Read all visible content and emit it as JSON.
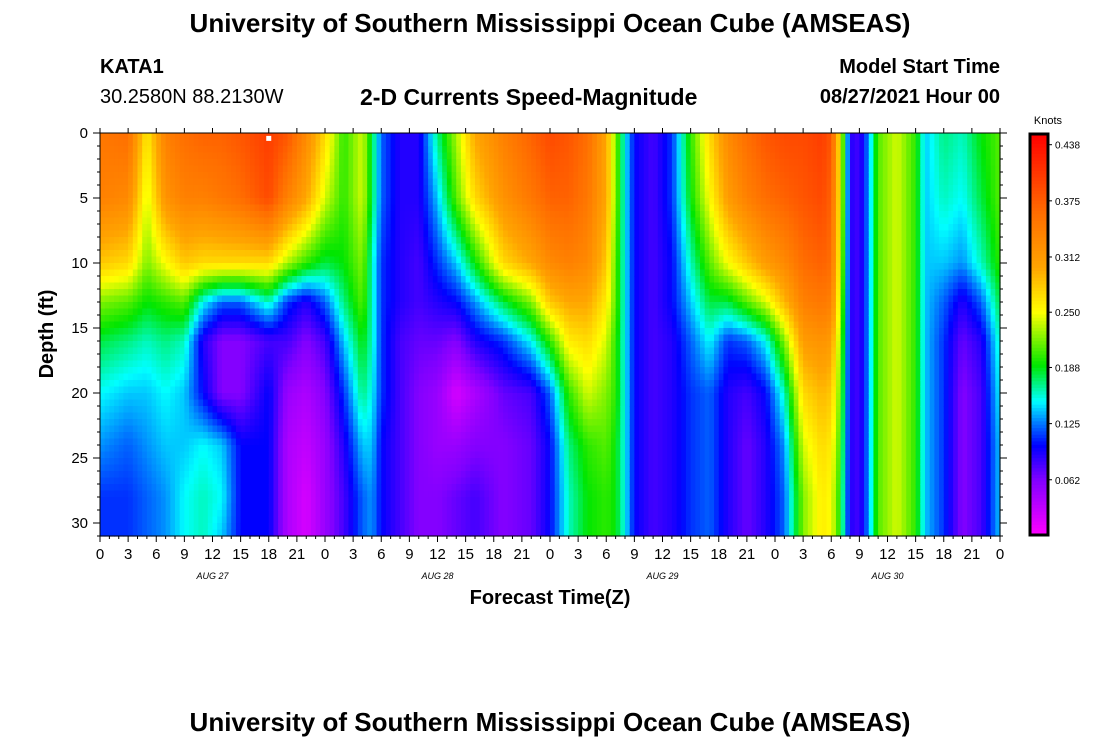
{
  "header": {
    "title": "University of Southern Mississippi Ocean Cube (AMSEAS)",
    "station_id": "KATA1",
    "station_coords": "30.2580N  88.2130W",
    "plot_title": "2-D Currents Speed-Magnitude",
    "model_start_label": "Model Start Time",
    "model_start_value": "08/27/2021 Hour 00"
  },
  "footer": {
    "title": "University of Southern Mississippi Ocean Cube (AMSEAS)"
  },
  "colors": {
    "background": "#ffffff",
    "axis": "#000000",
    "marker": "#ffffff"
  },
  "chart_data": {
    "type": "heatmap",
    "title": "2-D Currents Speed-Magnitude",
    "xlabel": "Forecast Time(Z)",
    "ylabel": "Depth (ft)",
    "x_ticks": [
      "0",
      "3",
      "6",
      "9",
      "12",
      "15",
      "18",
      "21",
      "0",
      "3",
      "6",
      "9",
      "12",
      "15",
      "18",
      "21",
      "0",
      "3",
      "6",
      "9",
      "12",
      "15",
      "18",
      "21",
      "0",
      "3",
      "6",
      "9",
      "12",
      "15",
      "18",
      "21",
      "0"
    ],
    "x_hours": [
      0,
      3,
      6,
      9,
      12,
      15,
      18,
      21,
      24,
      27,
      30,
      33,
      36,
      39,
      42,
      45,
      48,
      51,
      54,
      57,
      60,
      63,
      66,
      69,
      72,
      75,
      78,
      81,
      84,
      87,
      90,
      93,
      96
    ],
    "xlim_hours": [
      0,
      96
    ],
    "day_labels": [
      {
        "label": "AUG 27",
        "hour": 12
      },
      {
        "label": "AUG 28",
        "hour": 36
      },
      {
        "label": "AUG 29",
        "hour": 60
      },
      {
        "label": "AUG 30",
        "hour": 84
      }
    ],
    "y_ticks": [
      0,
      5,
      10,
      15,
      20,
      25,
      30
    ],
    "ylim_ft": [
      0,
      31
    ],
    "colorbar": {
      "unit_label": "Knots",
      "tick_labels": [
        "0.438",
        "0.375",
        "0.312",
        "0.250",
        "0.188",
        "0.125",
        "0.062"
      ],
      "tick_values": [
        0.438,
        0.375,
        0.312,
        0.25,
        0.188,
        0.125,
        0.062
      ],
      "range": [
        0,
        0.45
      ]
    },
    "grid": false,
    "marker": {
      "hour": 18,
      "depth_ft": 0.3
    },
    "profile_depths_ft": [
      0,
      5,
      10,
      13,
      16,
      20,
      24,
      28,
      31
    ],
    "speed_profiles_knots": [
      {
        "hour": 0,
        "values": [
          0.35,
          0.34,
          0.28,
          0.22,
          0.18,
          0.15,
          0.13,
          0.11,
          0.11
        ]
      },
      {
        "hour": 3,
        "values": [
          0.36,
          0.33,
          0.27,
          0.21,
          0.17,
          0.14,
          0.12,
          0.11,
          0.11
        ]
      },
      {
        "hour": 5,
        "values": [
          0.26,
          0.24,
          0.22,
          0.19,
          0.16,
          0.14,
          0.13,
          0.12,
          0.12
        ]
      },
      {
        "hour": 7,
        "values": [
          0.34,
          0.32,
          0.25,
          0.2,
          0.17,
          0.15,
          0.14,
          0.13,
          0.13
        ]
      },
      {
        "hour": 9,
        "values": [
          0.36,
          0.34,
          0.28,
          0.21,
          0.16,
          0.14,
          0.14,
          0.15,
          0.15
        ]
      },
      {
        "hour": 11,
        "values": [
          0.37,
          0.34,
          0.27,
          0.15,
          0.09,
          0.1,
          0.15,
          0.16,
          0.16
        ]
      },
      {
        "hour": 13,
        "values": [
          0.37,
          0.35,
          0.27,
          0.12,
          0.06,
          0.06,
          0.14,
          0.15,
          0.14
        ]
      },
      {
        "hour": 15,
        "values": [
          0.38,
          0.36,
          0.27,
          0.12,
          0.06,
          0.06,
          0.1,
          0.1,
          0.1
        ]
      },
      {
        "hour": 18,
        "values": [
          0.4,
          0.39,
          0.27,
          0.16,
          0.08,
          0.1,
          0.1,
          0.1,
          0.1
        ]
      },
      {
        "hour": 20,
        "values": [
          0.38,
          0.34,
          0.23,
          0.11,
          0.08,
          0.05,
          0.04,
          0.04,
          0.04
        ]
      },
      {
        "hour": 22,
        "values": [
          0.33,
          0.3,
          0.2,
          0.09,
          0.06,
          0.04,
          0.03,
          0.02,
          0.02
        ]
      },
      {
        "hour": 24,
        "values": [
          0.27,
          0.24,
          0.18,
          0.12,
          0.08,
          0.06,
          0.05,
          0.05,
          0.05
        ]
      },
      {
        "hour": 26,
        "values": [
          0.2,
          0.2,
          0.19,
          0.17,
          0.14,
          0.11,
          0.09,
          0.08,
          0.08
        ]
      },
      {
        "hour": 28,
        "values": [
          0.24,
          0.24,
          0.22,
          0.21,
          0.19,
          0.17,
          0.14,
          0.12,
          0.12
        ]
      },
      {
        "hour": 29,
        "values": [
          0.18,
          0.18,
          0.16,
          0.16,
          0.16,
          0.15,
          0.14,
          0.13,
          0.13
        ]
      },
      {
        "hour": 30,
        "values": [
          0.12,
          0.12,
          0.11,
          0.11,
          0.11,
          0.11,
          0.1,
          0.1,
          0.1
        ]
      },
      {
        "hour": 32,
        "values": [
          0.09,
          0.09,
          0.09,
          0.09,
          0.08,
          0.08,
          0.08,
          0.08,
          0.08
        ]
      },
      {
        "hour": 34,
        "values": [
          0.09,
          0.09,
          0.08,
          0.08,
          0.07,
          0.06,
          0.06,
          0.06,
          0.06
        ]
      },
      {
        "hour": 36,
        "values": [
          0.17,
          0.14,
          0.11,
          0.09,
          0.07,
          0.05,
          0.05,
          0.06,
          0.06
        ]
      },
      {
        "hour": 38,
        "values": [
          0.23,
          0.21,
          0.14,
          0.1,
          0.06,
          0.02,
          0.05,
          0.07,
          0.07
        ]
      },
      {
        "hour": 40,
        "values": [
          0.3,
          0.27,
          0.19,
          0.13,
          0.09,
          0.04,
          0.06,
          0.08,
          0.08
        ]
      },
      {
        "hour": 43,
        "values": [
          0.34,
          0.32,
          0.27,
          0.18,
          0.11,
          0.07,
          0.06,
          0.06,
          0.06
        ]
      },
      {
        "hour": 46,
        "values": [
          0.37,
          0.35,
          0.3,
          0.22,
          0.15,
          0.08,
          0.07,
          0.07,
          0.07
        ]
      },
      {
        "hour": 48,
        "values": [
          0.39,
          0.37,
          0.33,
          0.28,
          0.2,
          0.12,
          0.1,
          0.1,
          0.1
        ]
      },
      {
        "hour": 50,
        "values": [
          0.38,
          0.37,
          0.34,
          0.3,
          0.26,
          0.2,
          0.17,
          0.16,
          0.16
        ]
      },
      {
        "hour": 52,
        "values": [
          0.36,
          0.35,
          0.33,
          0.3,
          0.27,
          0.24,
          0.2,
          0.19,
          0.19
        ]
      },
      {
        "hour": 54,
        "values": [
          0.3,
          0.3,
          0.28,
          0.26,
          0.24,
          0.22,
          0.21,
          0.2,
          0.2
        ]
      },
      {
        "hour": 55,
        "values": [
          0.22,
          0.22,
          0.21,
          0.21,
          0.2,
          0.2,
          0.19,
          0.19,
          0.19
        ]
      },
      {
        "hour": 56,
        "values": [
          0.15,
          0.15,
          0.15,
          0.15,
          0.15,
          0.15,
          0.15,
          0.15,
          0.15
        ]
      },
      {
        "hour": 57,
        "values": [
          0.1,
          0.1,
          0.1,
          0.1,
          0.1,
          0.1,
          0.1,
          0.1,
          0.1
        ]
      },
      {
        "hour": 59,
        "values": [
          0.08,
          0.08,
          0.08,
          0.08,
          0.08,
          0.08,
          0.08,
          0.08,
          0.08
        ]
      },
      {
        "hour": 61,
        "values": [
          0.11,
          0.11,
          0.1,
          0.1,
          0.09,
          0.09,
          0.09,
          0.09,
          0.09
        ]
      },
      {
        "hour": 63,
        "values": [
          0.2,
          0.19,
          0.16,
          0.14,
          0.12,
          0.11,
          0.11,
          0.11,
          0.11
        ]
      },
      {
        "hour": 65,
        "values": [
          0.27,
          0.25,
          0.21,
          0.18,
          0.15,
          0.12,
          0.12,
          0.12,
          0.12
        ]
      },
      {
        "hour": 67,
        "values": [
          0.33,
          0.31,
          0.25,
          0.18,
          0.11,
          0.09,
          0.09,
          0.09,
          0.09
        ]
      },
      {
        "hour": 69,
        "values": [
          0.36,
          0.34,
          0.28,
          0.21,
          0.12,
          0.08,
          0.07,
          0.07,
          0.07
        ]
      },
      {
        "hour": 71,
        "values": [
          0.38,
          0.36,
          0.31,
          0.24,
          0.15,
          0.1,
          0.09,
          0.09,
          0.09
        ]
      },
      {
        "hour": 73,
        "values": [
          0.39,
          0.37,
          0.33,
          0.29,
          0.22,
          0.16,
          0.13,
          0.12,
          0.12
        ]
      },
      {
        "hour": 75,
        "values": [
          0.39,
          0.38,
          0.36,
          0.34,
          0.31,
          0.27,
          0.24,
          0.22,
          0.22
        ]
      },
      {
        "hour": 77,
        "values": [
          0.4,
          0.39,
          0.37,
          0.35,
          0.32,
          0.29,
          0.27,
          0.26,
          0.26
        ]
      },
      {
        "hour": 78,
        "values": [
          0.38,
          0.37,
          0.36,
          0.34,
          0.31,
          0.28,
          0.26,
          0.25,
          0.25
        ]
      },
      {
        "hour": 79,
        "values": [
          0.25,
          0.25,
          0.24,
          0.23,
          0.22,
          0.21,
          0.2,
          0.19,
          0.19
        ]
      },
      {
        "hour": 80,
        "values": [
          0.09,
          0.09,
          0.09,
          0.09,
          0.09,
          0.09,
          0.09,
          0.09,
          0.09
        ]
      },
      {
        "hour": 81,
        "values": [
          0.08,
          0.08,
          0.08,
          0.08,
          0.08,
          0.08,
          0.08,
          0.08,
          0.08
        ]
      },
      {
        "hour": 82,
        "values": [
          0.13,
          0.13,
          0.13,
          0.13,
          0.13,
          0.13,
          0.13,
          0.13,
          0.13
        ]
      },
      {
        "hour": 83,
        "values": [
          0.21,
          0.21,
          0.21,
          0.21,
          0.21,
          0.21,
          0.21,
          0.21,
          0.21
        ]
      },
      {
        "hour": 85,
        "values": [
          0.24,
          0.24,
          0.24,
          0.24,
          0.24,
          0.24,
          0.24,
          0.24,
          0.24
        ]
      },
      {
        "hour": 87,
        "values": [
          0.2,
          0.2,
          0.2,
          0.2,
          0.2,
          0.2,
          0.2,
          0.2,
          0.2
        ]
      },
      {
        "hour": 88,
        "values": [
          0.14,
          0.14,
          0.14,
          0.14,
          0.14,
          0.14,
          0.14,
          0.14,
          0.14
        ]
      },
      {
        "hour": 90,
        "values": [
          0.17,
          0.16,
          0.14,
          0.12,
          0.11,
          0.11,
          0.11,
          0.11,
          0.11
        ]
      },
      {
        "hour": 92,
        "values": [
          0.16,
          0.15,
          0.13,
          0.09,
          0.07,
          0.06,
          0.06,
          0.06,
          0.06
        ]
      },
      {
        "hour": 94,
        "values": [
          0.19,
          0.18,
          0.16,
          0.12,
          0.09,
          0.08,
          0.08,
          0.08,
          0.08
        ]
      },
      {
        "hour": 96,
        "values": [
          0.21,
          0.21,
          0.2,
          0.18,
          0.16,
          0.15,
          0.14,
          0.14,
          0.14
        ]
      }
    ]
  }
}
